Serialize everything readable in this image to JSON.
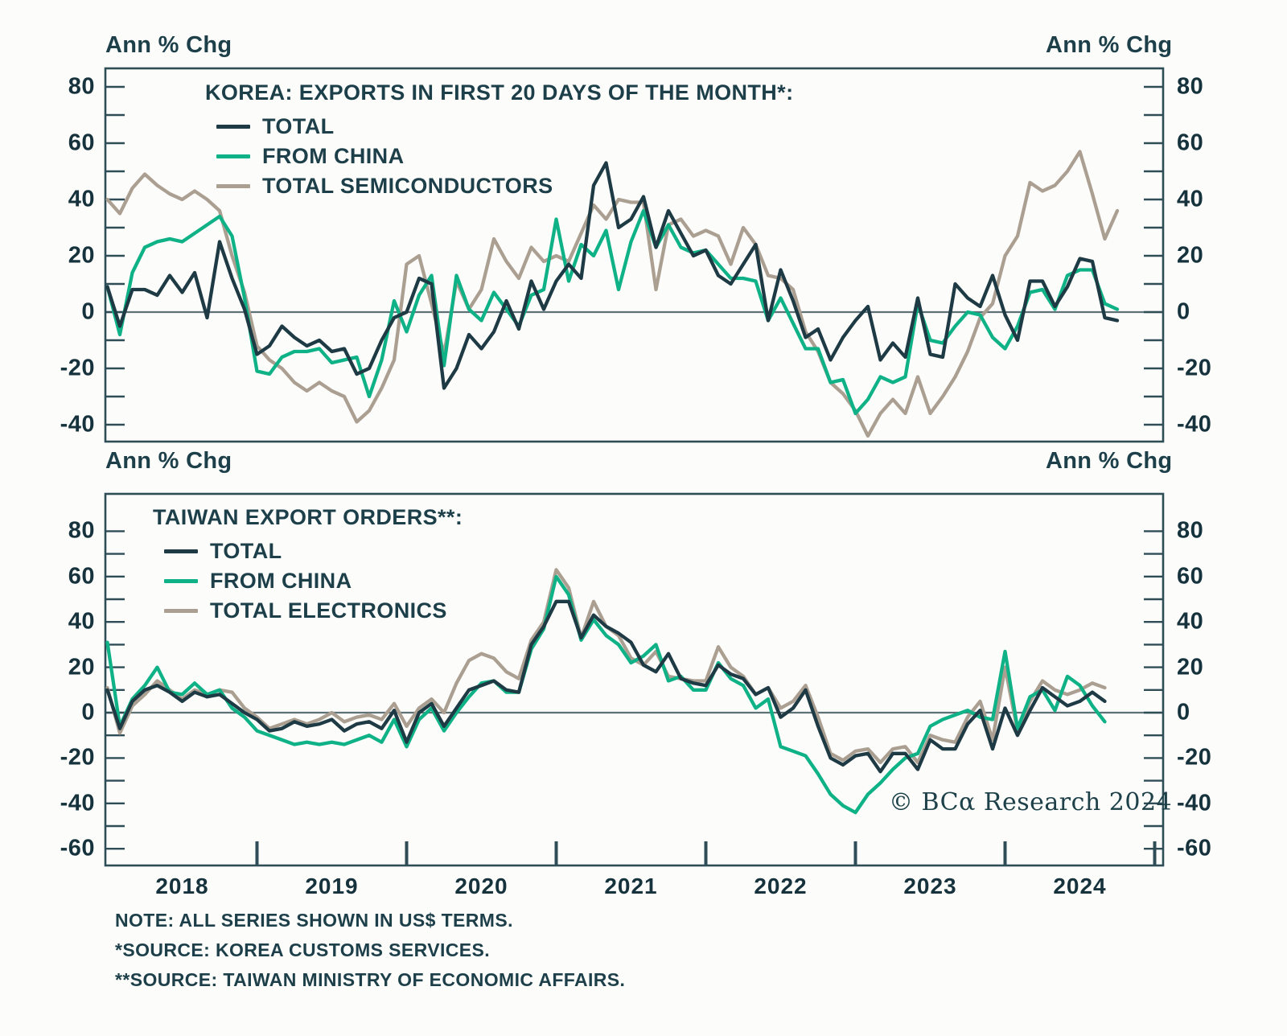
{
  "axis_unit_label": "Ann % Chg",
  "x_axis": {
    "start_month": "2018-01",
    "frequency": "monthly",
    "year_labels": [
      "2018",
      "2019",
      "2020",
      "2021",
      "2022",
      "2023",
      "2024"
    ]
  },
  "notes": [
    "NOTE: ALL SERIES SHOWN IN US$ TERMS.",
    "*SOURCE: KOREA CUSTOMS SERVICES.",
    "**SOURCE: TAIWAN MINISTRY OF ECONOMIC AFFAIRS."
  ],
  "watermark": "© BCα Research 2024",
  "colors": {
    "total": "#1e3a44",
    "from_china": "#0fb286",
    "tan_series": "#ab9f92",
    "frame": "#2e4d57",
    "zero_line": "#5e7177",
    "text": "#1d3f49"
  },
  "chart_data": [
    {
      "type": "line",
      "title": "KOREA: EXPORTS IN FIRST 20 DAYS OF THE MONTH*:",
      "axis_label": "Ann % Chg",
      "x_start": "2018-01",
      "x_freq": "monthly",
      "ylim": [
        -46,
        87
      ],
      "y_tick_labels": [
        80,
        60,
        40,
        20,
        0,
        -20,
        -40
      ],
      "y_minor_tick_step": 10,
      "grid": false,
      "zero_line": true,
      "legend_position": "top-left",
      "series": [
        {
          "name": "TOTAL",
          "color": "#1e3a44",
          "values": [
            9,
            -5,
            8,
            8,
            6,
            13,
            7,
            14,
            -2,
            25,
            12,
            1,
            -15,
            -12,
            -5,
            -9,
            -12,
            -10,
            -14,
            -13,
            -22,
            -20,
            -10,
            -2,
            0,
            12,
            10,
            -27,
            -20,
            -8,
            -13,
            -7,
            4,
            -6,
            11,
            1,
            11,
            17,
            12,
            45,
            53,
            30,
            33,
            41,
            23,
            36,
            28,
            20,
            22,
            13,
            10,
            17,
            24,
            -3,
            15,
            4,
            -9,
            -6,
            -17,
            -9,
            -3,
            2,
            -17,
            -11,
            -16,
            5,
            -15,
            -16,
            10,
            5,
            2,
            13,
            -1,
            -10,
            11,
            11,
            2,
            9,
            19,
            18,
            -2,
            -3
          ]
        },
        {
          "name": "FROM CHINA",
          "color": "#0fb286",
          "values": [
            9,
            -8,
            14,
            23,
            25,
            26,
            25,
            28,
            31,
            34,
            27,
            5,
            -21,
            -22,
            -16,
            -14,
            -14,
            -13,
            -18,
            -17,
            -16,
            -30,
            -17,
            4,
            -7,
            6,
            13,
            -19,
            13,
            1,
            -3,
            7,
            1,
            -5,
            6,
            8,
            33,
            11,
            24,
            20,
            29,
            8,
            25,
            36,
            23,
            31,
            23,
            21,
            22,
            17,
            12,
            12,
            11,
            -3,
            5,
            -4,
            -13,
            -13,
            -25,
            -24,
            -36,
            -31,
            -23,
            -25,
            -23,
            3,
            -10,
            -11,
            -5,
            0,
            -1,
            -9,
            -13,
            -5,
            7,
            8,
            1,
            13,
            15,
            15,
            3,
            1
          ]
        },
        {
          "name": "TOTAL SEMICONDUCTORS",
          "color": "#ab9f92",
          "values": [
            40,
            35,
            44,
            49,
            45,
            42,
            40,
            43,
            40,
            36,
            20,
            7,
            -12,
            -17,
            -20,
            -25,
            -28,
            -25,
            -28,
            -30,
            -39,
            -35,
            -27,
            -17,
            17,
            20,
            3,
            -15,
            11,
            1,
            8,
            26,
            18,
            12,
            23,
            18,
            20,
            18,
            28,
            38,
            33,
            40,
            39,
            39,
            8,
            31,
            33,
            27,
            29,
            27,
            17,
            30,
            24,
            13,
            12,
            8,
            -7,
            -14,
            -25,
            -29,
            -35,
            -44,
            -36,
            -31,
            -36,
            -23,
            -36,
            -30,
            -23,
            -14,
            -2,
            3,
            20,
            27,
            46,
            43,
            45,
            50,
            57,
            42,
            26,
            36
          ]
        }
      ]
    },
    {
      "type": "line",
      "title": "TAIWAN EXPORT ORDERS**:",
      "axis_label": "Ann % Chg",
      "x_start": "2018-01",
      "x_freq": "monthly",
      "ylim": [
        -67,
        96
      ],
      "y_tick_labels": [
        80,
        60,
        40,
        20,
        0,
        -20,
        -40,
        -60
      ],
      "y_minor_tick_step": 10,
      "grid": false,
      "zero_line": true,
      "legend_position": "top-left",
      "series": [
        {
          "name": "TOTAL",
          "color": "#1e3a44",
          "values": [
            10,
            -7,
            5,
            10,
            12,
            9,
            5,
            9,
            7,
            8,
            4,
            0,
            -3,
            -8,
            -7,
            -4,
            -6,
            -5,
            -3,
            -8,
            -5,
            -4,
            -7,
            1,
            -13,
            0,
            4,
            -6,
            2,
            10,
            12,
            14,
            10,
            9,
            30,
            38,
            49,
            49,
            33,
            43,
            38,
            35,
            31,
            21,
            18,
            26,
            15,
            13,
            12,
            21,
            17,
            15,
            8,
            11,
            -2,
            2,
            10,
            -6,
            -20,
            -23,
            -19,
            -18,
            -26,
            -18,
            -18,
            -25,
            -12,
            -16,
            -16,
            -5,
            1,
            -16,
            2,
            -10,
            1,
            11,
            7,
            3,
            5,
            9,
            5
          ]
        },
        {
          "name": "FROM CHINA",
          "color": "#0fb286",
          "values": [
            31,
            -6,
            6,
            12,
            20,
            9,
            8,
            13,
            8,
            10,
            2,
            -2,
            -8,
            -10,
            -12,
            -14,
            -13,
            -14,
            -13,
            -14,
            -12,
            -10,
            -13,
            -3,
            -15,
            -3,
            2,
            -8,
            0,
            7,
            13,
            14,
            9,
            9,
            28,
            37,
            60,
            52,
            32,
            41,
            34,
            30,
            22,
            25,
            30,
            14,
            16,
            10,
            10,
            22,
            15,
            12,
            2,
            6,
            -15,
            -17,
            -19,
            -27,
            -36,
            -41,
            -44,
            -36,
            -31,
            -25,
            -20,
            -18,
            -6,
            -3,
            -1,
            1,
            -2,
            -3,
            27,
            -7,
            7,
            10,
            1,
            16,
            12,
            3,
            -4
          ]
        },
        {
          "name": "TOTAL ELECTRONICS",
          "color": "#ab9f92",
          "values": [
            11,
            -9,
            3,
            8,
            14,
            10,
            6,
            10,
            8,
            10,
            9,
            2,
            -2,
            -7,
            -5,
            -3,
            -5,
            -3,
            0,
            -4,
            -2,
            -1,
            -3,
            4,
            -6,
            2,
            6,
            0,
            13,
            23,
            26,
            24,
            18,
            15,
            32,
            40,
            63,
            55,
            33,
            49,
            38,
            34,
            24,
            21,
            27,
            16,
            15,
            14,
            14,
            29,
            20,
            16,
            8,
            11,
            2,
            5,
            12,
            -2,
            -18,
            -21,
            -17,
            -16,
            -22,
            -16,
            -15,
            -22,
            -10,
            -12,
            -13,
            -2,
            5,
            -12,
            20,
            -8,
            5,
            14,
            10,
            8,
            10,
            13,
            11
          ]
        }
      ]
    }
  ]
}
